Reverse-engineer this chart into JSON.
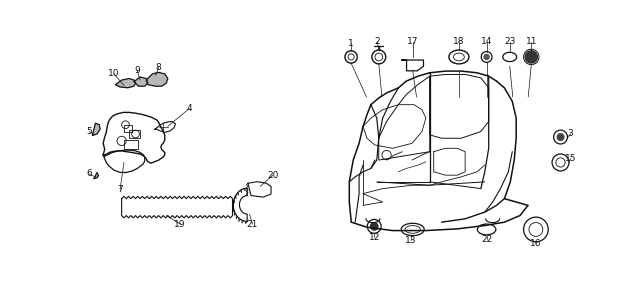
{
  "bg_color": "#ffffff",
  "line_color": "#111111",
  "fig_width": 6.4,
  "fig_height": 2.95,
  "dpi": 100
}
